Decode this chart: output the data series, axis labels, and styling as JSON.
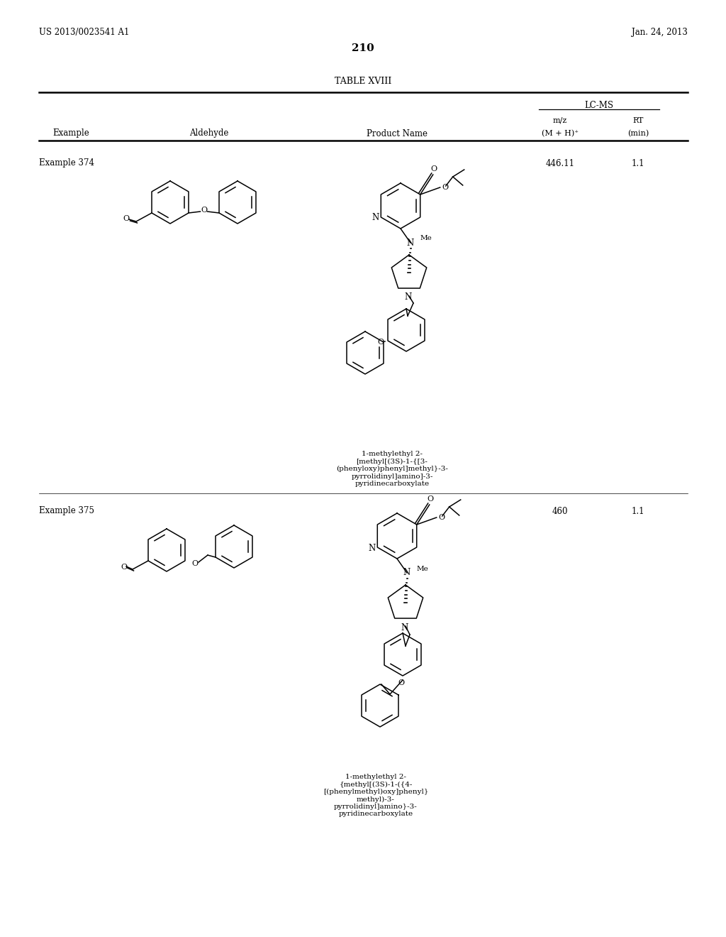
{
  "page_number": "210",
  "patent_number": "US 2013/0023541 A1",
  "patent_date": "Jan. 24, 2013",
  "table_title": "TABLE XVIII",
  "lcms_header": "LC-MS",
  "col_example": "Example",
  "col_aldehyde": "Aldehyde",
  "col_product": "Product Name",
  "col_mz": "m/z",
  "col_mz2": "(M + H)⁺",
  "col_rt": "RT",
  "col_rt2": "(min)",
  "examples": [
    {
      "name": "Example 374",
      "mz": "446.11",
      "rt": "1.1",
      "product_name": "1-methylethyl 2-\n[methyl[(3S)-1-{[3-\n(phenyloxy)phenyl]methyl}-3-\npyrrolidinyl]amino]-3-\npyridinecarboxylate"
    },
    {
      "name": "Example 375",
      "mz": "460",
      "rt": "1.1",
      "product_name": "1-methylethyl 2-\n{methyl[(3S)-1-({4-\n[(phenylmethyl)oxy]phenyl}\nmethyl)-3-\npyrrolidinyl]amino}-3-\npyridinecarboxylate"
    }
  ],
  "bg_color": "#ffffff",
  "text_color": "#000000"
}
